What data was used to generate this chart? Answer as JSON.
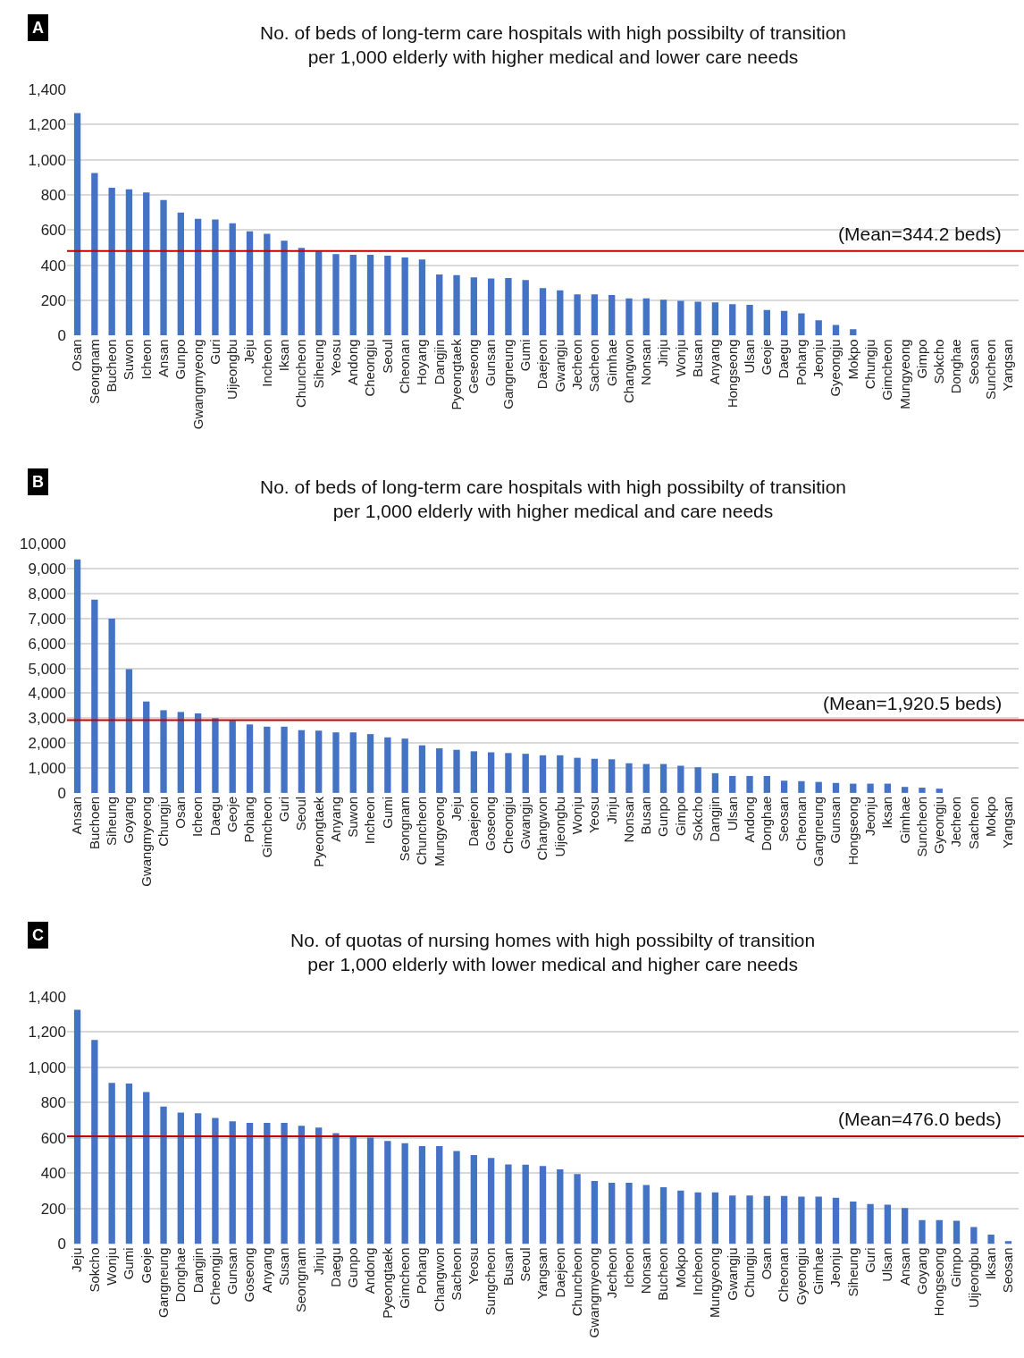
{
  "chart_data": [
    {
      "type": "bar",
      "title": "No. of beds of long-term care hospitals with high possibilty of transition\nper 1,000 elderly with higher medical and lower care needs",
      "categories": [
        "Osan",
        "Seongnam",
        "Bucheon",
        "Suwon",
        "Icheon",
        "Ansan",
        "Gunpo",
        "Gwangmyeong",
        "Guri",
        "Uijeongbu",
        "Jeju",
        "Incheon",
        "Iksan",
        "Chuncheon",
        "Siheung",
        "Yeosu",
        "Andong",
        "Cheongju",
        "Seoul",
        "Cheonan",
        "Hoyang",
        "Dangjin",
        "Pyeongtaek",
        "Geseong",
        "Gunsan",
        "Gangneung",
        "Gumi",
        "Daejeon",
        "Gwangju",
        "Jecheon",
        "Sacheon",
        "Gimhae",
        "Changwon",
        "Nonsan",
        "Jinju",
        "Wonju",
        "Busan",
        "Anyang",
        "Hongseong",
        "Ulsan",
        "Geoje",
        "Daegu",
        "Pohang",
        "Jeonju",
        "Gyeongju",
        "Mokpo",
        "Chungju",
        "Gimcheon",
        "Mungyeong",
        "Gimpo",
        "Sokcho",
        "Donghae",
        "Seosan",
        "Suncheon",
        "Yangsan"
      ],
      "values": [
        1265,
        924,
        840,
        831,
        814,
        770,
        699,
        664,
        660,
        638,
        593,
        578,
        539,
        498,
        478,
        463,
        459,
        459,
        454,
        444,
        433,
        348,
        344,
        331,
        325,
        327,
        315,
        270,
        257,
        234,
        234,
        230,
        211,
        211,
        204,
        198,
        192,
        189,
        179,
        175,
        145,
        140,
        126,
        87,
        60,
        36,
        0,
        0,
        0,
        0,
        0,
        0,
        0,
        0,
        0
      ],
      "color": "#4472c4",
      "ylim": [
        0,
        1400
      ],
      "yticks": [
        0,
        200,
        400,
        600,
        800,
        {
          "value": 1000,
          "label": "1,000"
        },
        {
          "value": 1200,
          "label": "1,200"
        },
        {
          "value": 1400,
          "label": "1,400"
        }
      ],
      "grid": "y",
      "annotations": [
        "A",
        {
          "text": "(Mean=344.2 beds)",
          "y": 481
        }
      ],
      "ref_lines": [
        {
          "axis": "y",
          "value": 481,
          "color": "#c00000"
        }
      ]
    },
    {
      "type": "bar",
      "title": "No. of beds of long-term care hospitals with high possibilty of transition\nper 1,000 elderly with higher medical and care needs",
      "categories": [
        "Ansan",
        "Buchoen",
        "Siheung",
        "Goyang",
        "Gwangmyeong",
        "Chungju",
        "Osan",
        "Icheon",
        "Daegu",
        "Geoje",
        "Pohang",
        "Gimcheon",
        "Guri",
        "Seoul",
        "Pyeongtaek",
        "Anyang",
        "Suwon",
        "Incheon",
        "Gumi",
        "Seongnam",
        "Chuncheon",
        "Mungyeong",
        "Jeju",
        "Daejeon",
        "Goseong",
        "Cheongju",
        "Gwangju",
        "Changwon",
        "Uijeongbu",
        "Wonju",
        "Yeosu",
        "Jinju",
        "Nonsan",
        "Busan",
        "Gunpo",
        "Gimpo",
        "Sokcho",
        "Dangjin",
        "Ulsan",
        "Andong",
        "Donghae",
        "Seosan",
        "Cheonan",
        "Gangneung",
        "Gunsan",
        "Hongseong",
        "Jeonju",
        "Iksan",
        "Gimhae",
        "Suncheon",
        "Gyeongju",
        "Jecheon",
        "Sacheon",
        "Mokpo",
        "Yangsan"
      ],
      "values": [
        9380,
        7760,
        7000,
        4970,
        3670,
        3320,
        3250,
        3190,
        3000,
        2900,
        2750,
        2660,
        2660,
        2520,
        2500,
        2430,
        2430,
        2360,
        2230,
        2180,
        1910,
        1790,
        1730,
        1670,
        1630,
        1600,
        1570,
        1510,
        1510,
        1410,
        1370,
        1350,
        1190,
        1160,
        1160,
        1090,
        1030,
        790,
        680,
        680,
        680,
        490,
        470,
        440,
        400,
        370,
        370,
        370,
        240,
        210,
        170,
        0,
        0,
        0,
        0
      ],
      "color": "#4472c4",
      "ylim": [
        0,
        10000
      ],
      "yticks": [
        0,
        {
          "value": 1000,
          "label": "1,000"
        },
        {
          "value": 2000,
          "label": "2,000"
        },
        {
          "value": 3000,
          "label": "3,000"
        },
        {
          "value": 4000,
          "label": "4,000"
        },
        {
          "value": 5000,
          "label": "5,000"
        },
        {
          "value": 6000,
          "label": "6,000"
        },
        {
          "value": 7000,
          "label": "7,000"
        },
        {
          "value": 8000,
          "label": "8,000"
        },
        {
          "value": 9000,
          "label": "9,000"
        },
        {
          "value": 10000,
          "label": "10,000"
        }
      ],
      "grid": "y",
      "annotations": [
        "B",
        {
          "text": "(Mean=1,920.5 beds)",
          "y": 2920
        }
      ],
      "ref_lines": [
        {
          "axis": "y",
          "value": 2920,
          "color": "#c00000"
        }
      ]
    },
    {
      "type": "bar",
      "title": "No. of quotas of nursing homes with high possibilty of transition\nper 1,000 elderly with lower medical and higher care needs",
      "categories": [
        "Jeju",
        "Sokcho",
        "Wonju",
        "Gumi",
        "Geoje",
        "Gangneung",
        "Donghae",
        "Dangjin",
        "Cheongju",
        "Gunsan",
        "Goseong",
        "Anyang",
        "Susan",
        "Seongnam",
        "Jinju",
        "Daegu",
        "Gunpo",
        "Andong",
        "Pyeongtaek",
        "Gimcheon",
        "Pohang",
        "Changwon",
        "Sacheon",
        "Yeosu",
        "Sungcheon",
        "Busan",
        "Seoul",
        "Yangsan",
        "Daejeon",
        "Chuncheon",
        "Gwangmyeong",
        "Jecheon",
        "Icheon",
        "Nonsan",
        "Bucheon",
        "Mokpo",
        "Incheon",
        "Mungyeong",
        "Gwangju",
        "Chungju",
        "Osan",
        "Cheonan",
        "Gyeongju",
        "Gimhae",
        "Jeonju",
        "Siheung",
        "Guri",
        "Ulsan",
        "Ansan",
        "Goyang",
        "Hongseong",
        "Gimpo",
        "Uijeongbu",
        "Iksan",
        "Seosan"
      ],
      "values": [
        1327,
        1156,
        913,
        909,
        861,
        779,
        744,
        740,
        714,
        695,
        686,
        686,
        686,
        669,
        660,
        628,
        612,
        602,
        584,
        571,
        554,
        554,
        526,
        504,
        487,
        450,
        449,
        442,
        423,
        396,
        357,
        347,
        347,
        334,
        321,
        302,
        292,
        292,
        275,
        275,
        272,
        272,
        268,
        268,
        262,
        240,
        226,
        223,
        204,
        136,
        136,
        132,
        96,
        53,
        17
      ],
      "color": "#4472c4",
      "ylim": [
        0,
        1400
      ],
      "yticks": [
        0,
        200,
        400,
        600,
        800,
        {
          "value": 1000,
          "label": "1,000"
        },
        {
          "value": 1200,
          "label": "1,200"
        },
        {
          "value": 1400,
          "label": "1,400"
        }
      ],
      "grid": "y",
      "annotations": [
        "C",
        {
          "text": "(Mean=476.0 beds)",
          "y": 610
        }
      ],
      "ref_lines": [
        {
          "axis": "y",
          "value": 610,
          "color": "#c00000"
        }
      ]
    }
  ]
}
